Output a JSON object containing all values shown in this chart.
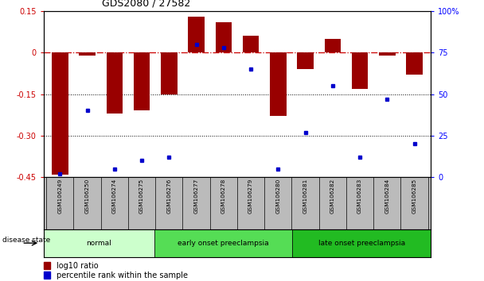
{
  "title": "GDS2080 / 27582",
  "samples": [
    "GSM106249",
    "GSM106250",
    "GSM106274",
    "GSM106275",
    "GSM106276",
    "GSM106277",
    "GSM106278",
    "GSM106279",
    "GSM106280",
    "GSM106281",
    "GSM106282",
    "GSM106283",
    "GSM106284",
    "GSM106285"
  ],
  "log10_ratio": [
    -0.44,
    -0.01,
    -0.22,
    -0.21,
    -0.15,
    0.13,
    0.11,
    0.06,
    -0.23,
    -0.06,
    0.05,
    -0.13,
    -0.01,
    -0.08
  ],
  "percentile_rank": [
    2,
    40,
    5,
    10,
    12,
    80,
    78,
    65,
    5,
    27,
    55,
    12,
    47,
    20
  ],
  "disease_state_groups": [
    {
      "label": "normal",
      "start": 0,
      "end": 4,
      "color": "#ccffcc"
    },
    {
      "label": "early onset preeclampsia",
      "start": 4,
      "end": 9,
      "color": "#55dd55"
    },
    {
      "label": "late onset preeclampsia",
      "start": 9,
      "end": 14,
      "color": "#22bb22"
    }
  ],
  "ylim_left": [
    -0.45,
    0.15
  ],
  "ylim_right": [
    0,
    100
  ],
  "yticks_left": [
    0.15,
    0.0,
    -0.15,
    -0.3,
    -0.45
  ],
  "yticks_right": [
    100,
    75,
    50,
    25,
    0
  ],
  "ytick_labels_left": [
    "0.15",
    "0",
    "-0.15",
    "-0.30",
    "-0.45"
  ],
  "ytick_labels_right": [
    "100%",
    "75",
    "50",
    "25",
    "0"
  ],
  "bar_color": "#990000",
  "dot_color": "#0000cc",
  "zero_line_color": "#cc0000",
  "background_color": "#ffffff",
  "tick_label_area_color": "#bbbbbb"
}
